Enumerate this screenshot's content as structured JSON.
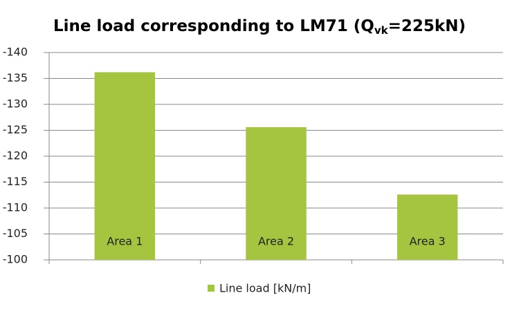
{
  "chart_data": {
    "type": "bar",
    "title": [
      "Line load corresponding  to LM71 (Q",
      "vk",
      "=225kN)"
    ],
    "categories": [
      "Area 1",
      "Area 2",
      "Area 3"
    ],
    "series": [
      {
        "name": "Line load [kN/m]",
        "color": "#a5c43f",
        "values": [
          -136.2,
          -125.6,
          -112.6
        ]
      }
    ],
    "ylim": [
      -100,
      -140
    ],
    "yticks": [
      -140,
      -135,
      -130,
      -125,
      -120,
      -115,
      -110,
      -105,
      -100
    ],
    "grid": true,
    "legend": "bottom"
  }
}
